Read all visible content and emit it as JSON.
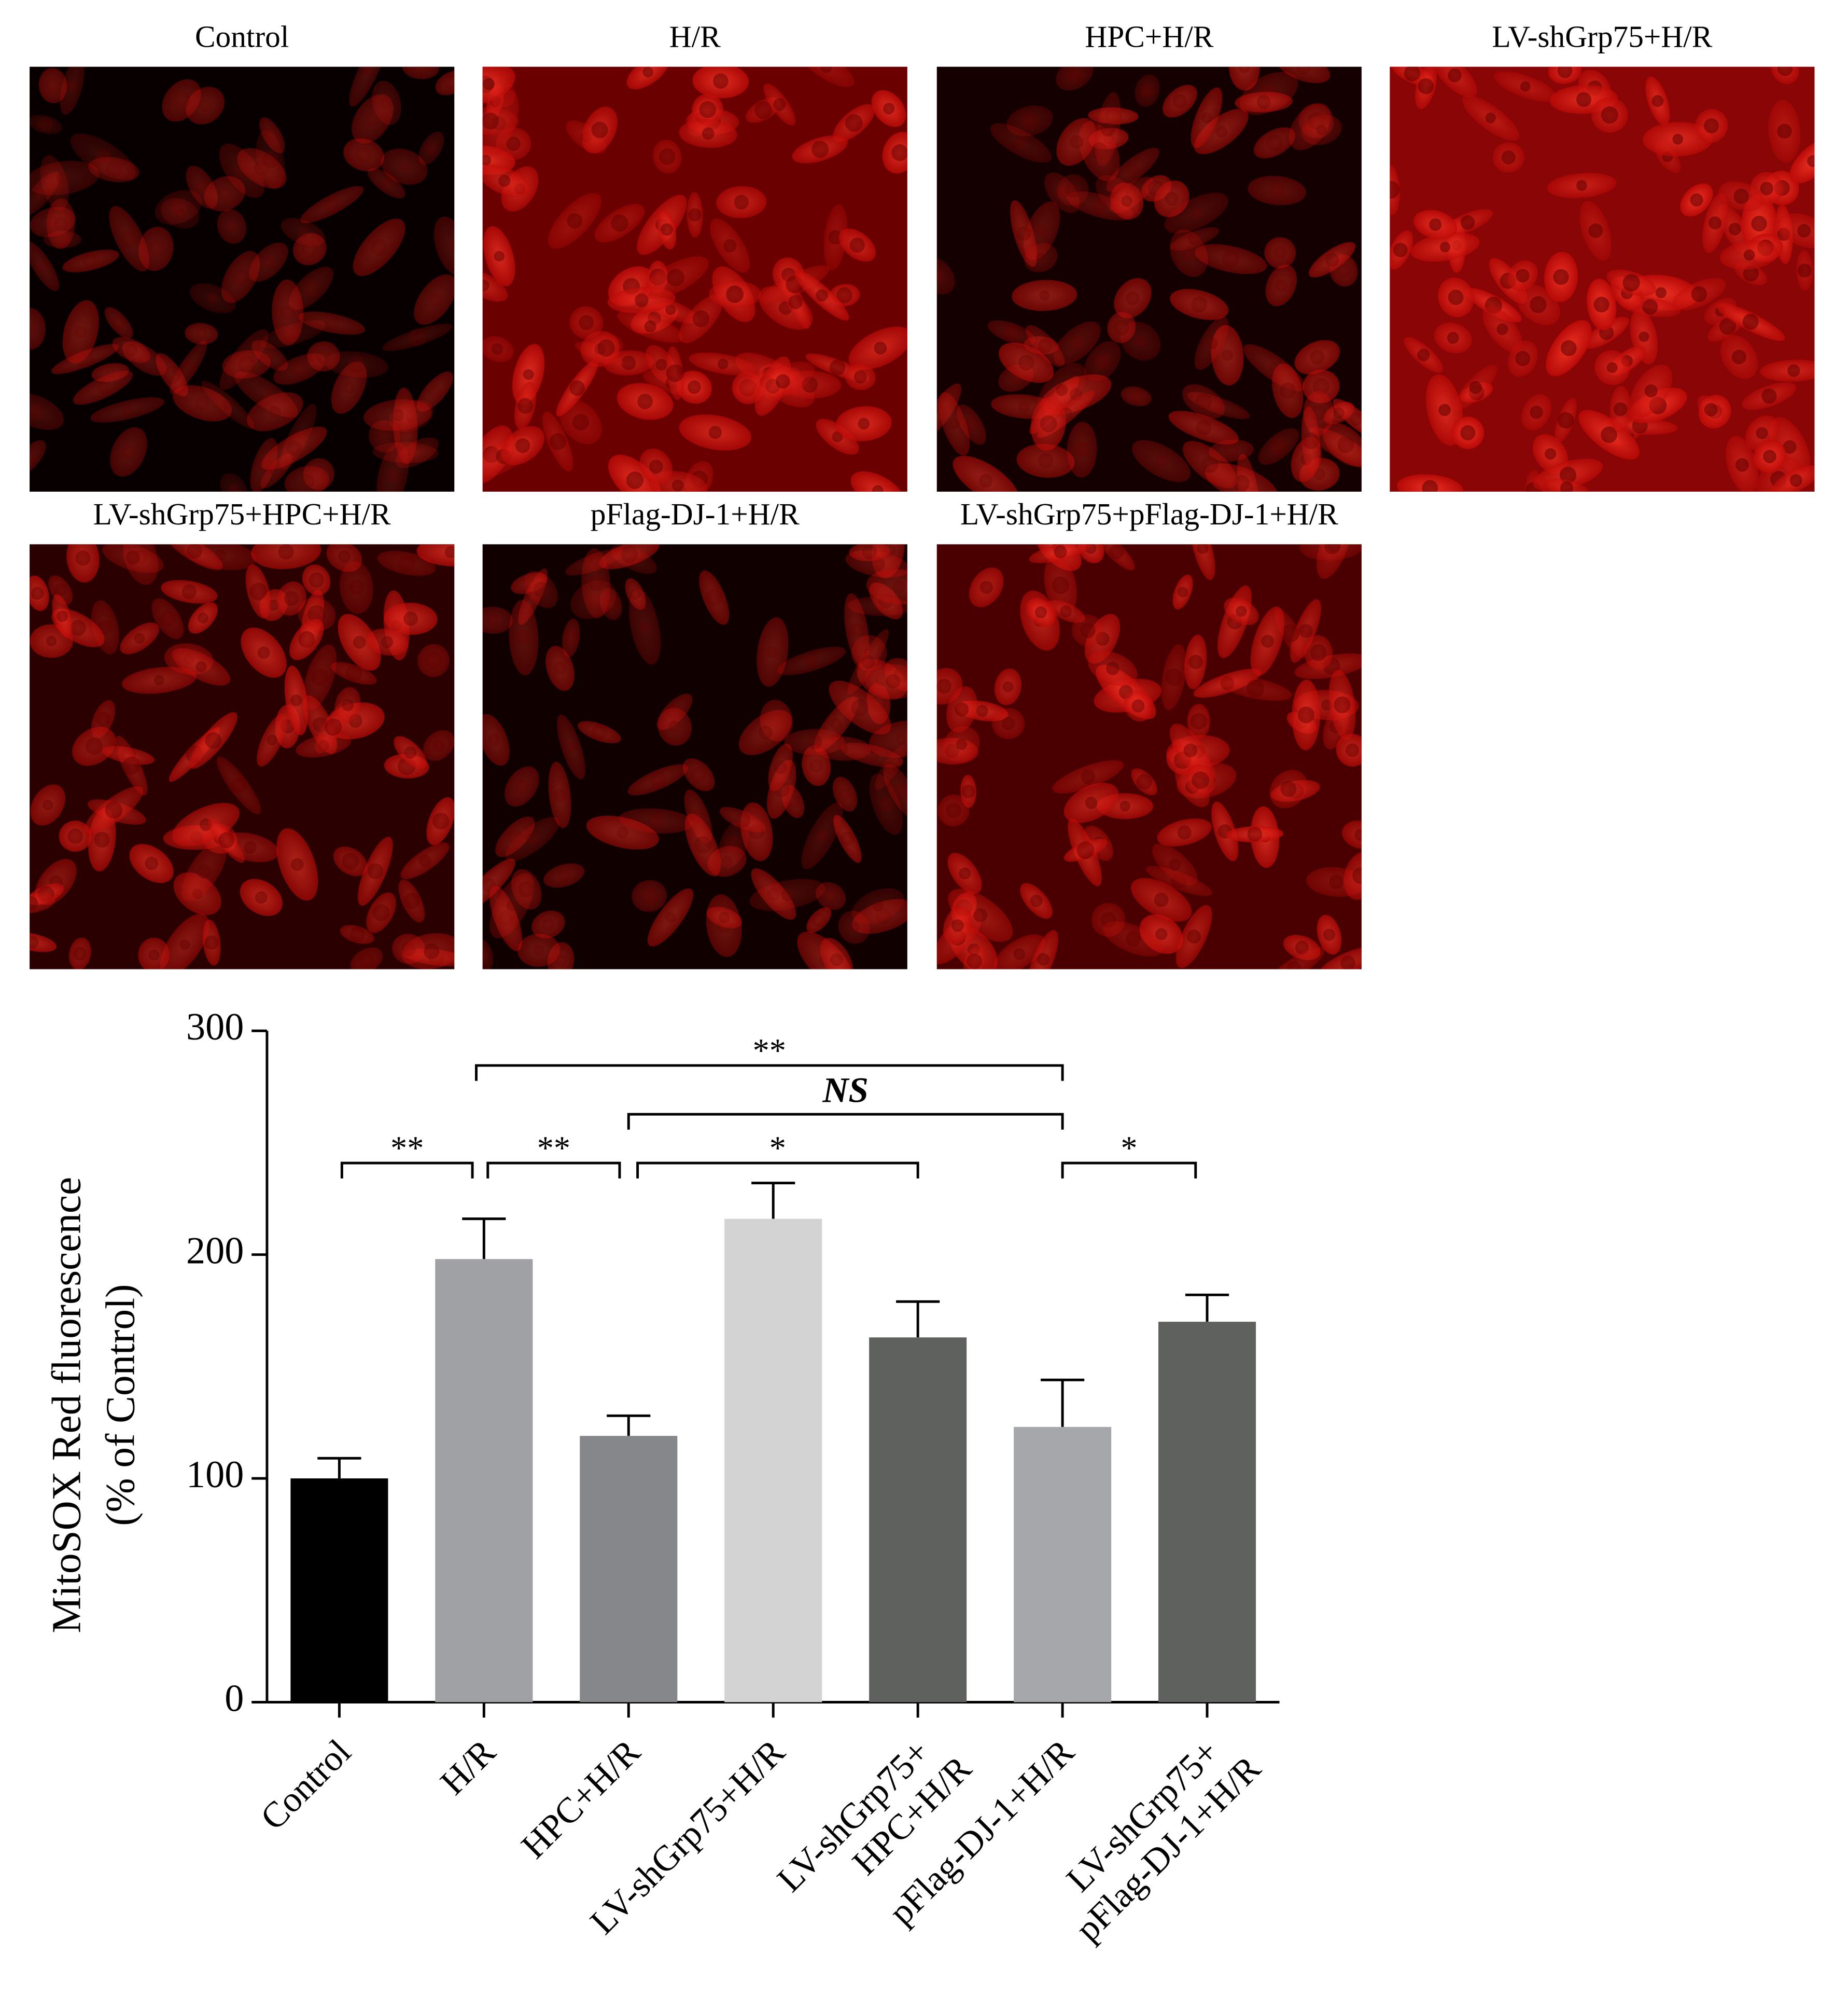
{
  "images": [
    {
      "title": "Control"
    },
    {
      "title": "H/R"
    },
    {
      "title": "HPC+H/R"
    },
    {
      "title": "LV-shGrp75+H/R"
    },
    {
      "title": "LV-shGrp75+HPC+H/R"
    },
    {
      "title": "pFlag-DJ-1+H/R"
    },
    {
      "title": "LV-shGrp75+pFlag-DJ-1+H/R"
    }
  ],
  "chart_data": {
    "type": "bar",
    "ylabel": [
      "MitoSOX Red fluorescence",
      "(% of Control)"
    ],
    "categories": [
      "Control",
      "H/R",
      "HPC+H/R",
      "LV-shGrp75+H/R",
      "LV-shGrp75+\nHPC+H/R",
      "pFlag-DJ-1+H/R",
      "LV-shGrp75+\npFlag-DJ-1+H/R"
    ],
    "values": [
      100,
      198,
      119,
      216,
      163,
      123,
      170
    ],
    "errors": [
      9,
      18,
      9,
      16,
      16,
      21,
      12
    ],
    "colors": [
      "#000000",
      "#a0a1a5",
      "#86878a",
      "#d3d3d3",
      "#5f615f",
      "#a6a7ab",
      "#5f615f"
    ],
    "ylim": [
      0,
      300
    ],
    "yticks": [
      0,
      100,
      200,
      300
    ],
    "annotations": [
      {
        "text": "**",
        "from": 0,
        "to": 1
      },
      {
        "text": "**",
        "from": 1,
        "to": 2
      },
      {
        "text": "*",
        "from": 2,
        "to": 4
      },
      {
        "text": "*",
        "from": 5,
        "to": 6
      },
      {
        "text": "NS",
        "from": 2,
        "to": 5
      },
      {
        "text": "**",
        "from": 1,
        "to": 5
      }
    ]
  }
}
